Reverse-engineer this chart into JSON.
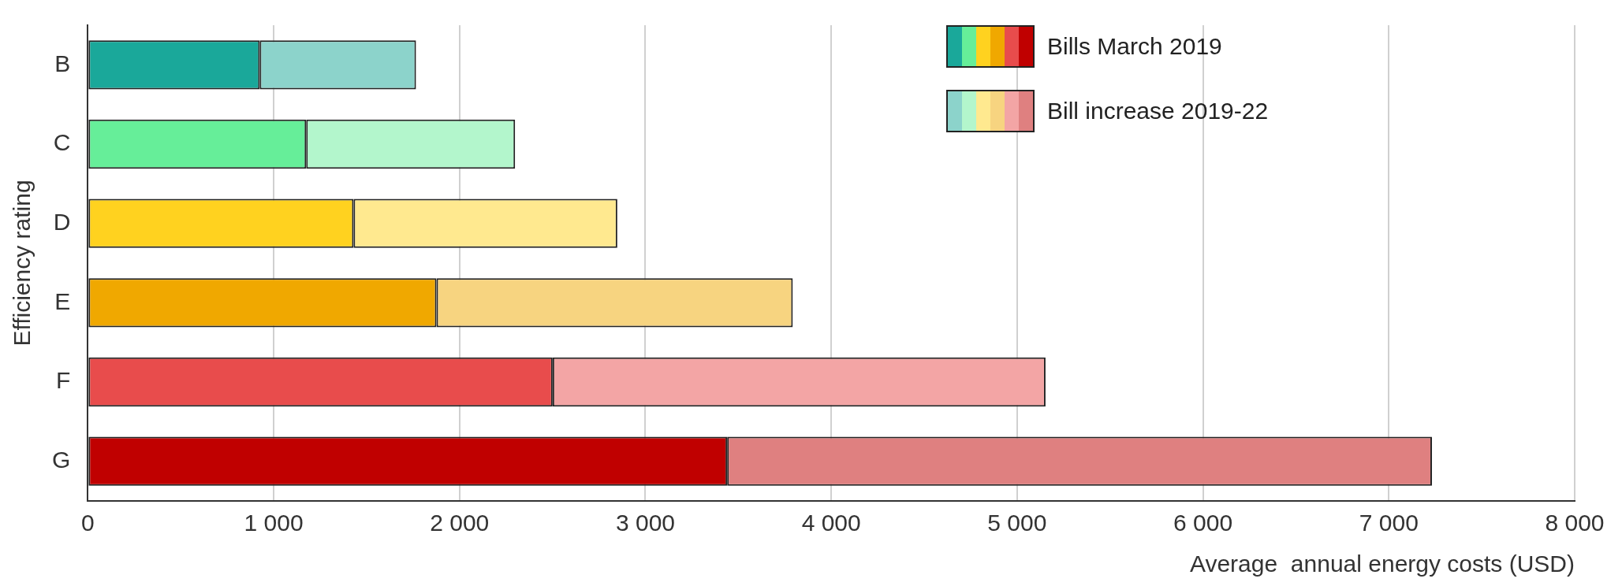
{
  "chart_data": {
    "type": "bar",
    "orientation": "horizontal",
    "stacked": true,
    "xlabel": "Average  annual energy costs (USD)",
    "ylabel": "Efficiency rating",
    "categories": [
      "B",
      "C",
      "D",
      "E",
      "F",
      "G"
    ],
    "series": [
      {
        "name": "Bills March 2019",
        "colors": [
          "#1aa89a",
          "#66ee99",
          "#ffd21f",
          "#f0a800",
          "#e84c4c",
          "#c00000"
        ],
        "values": [
          925,
          1175,
          1430,
          1876,
          2501,
          3440
        ]
      },
      {
        "name": "Bill increase 2019-22",
        "colors": [
          "#8cd3cb",
          "#b3f6cc",
          "#ffe98f",
          "#f7d480",
          "#f3a5a5",
          "#df8080"
        ],
        "values": [
          841,
          1124,
          1419,
          1917,
          2652,
          3792
        ]
      }
    ],
    "xlim": [
      0,
      8000
    ],
    "xticks": [
      {
        "value": 0,
        "label": "0"
      },
      {
        "value": 1000,
        "label": "1 000"
      },
      {
        "value": 2000,
        "label": "2 000"
      },
      {
        "value": 3000,
        "label": "3 000"
      },
      {
        "value": 4000,
        "label": "4 000"
      },
      {
        "value": 5000,
        "label": "5 000"
      },
      {
        "value": 6000,
        "label": "6 000"
      },
      {
        "value": 7000,
        "label": "7 000"
      },
      {
        "value": 8000,
        "label": "8 000"
      }
    ],
    "grid": "x",
    "legend": "top right"
  }
}
